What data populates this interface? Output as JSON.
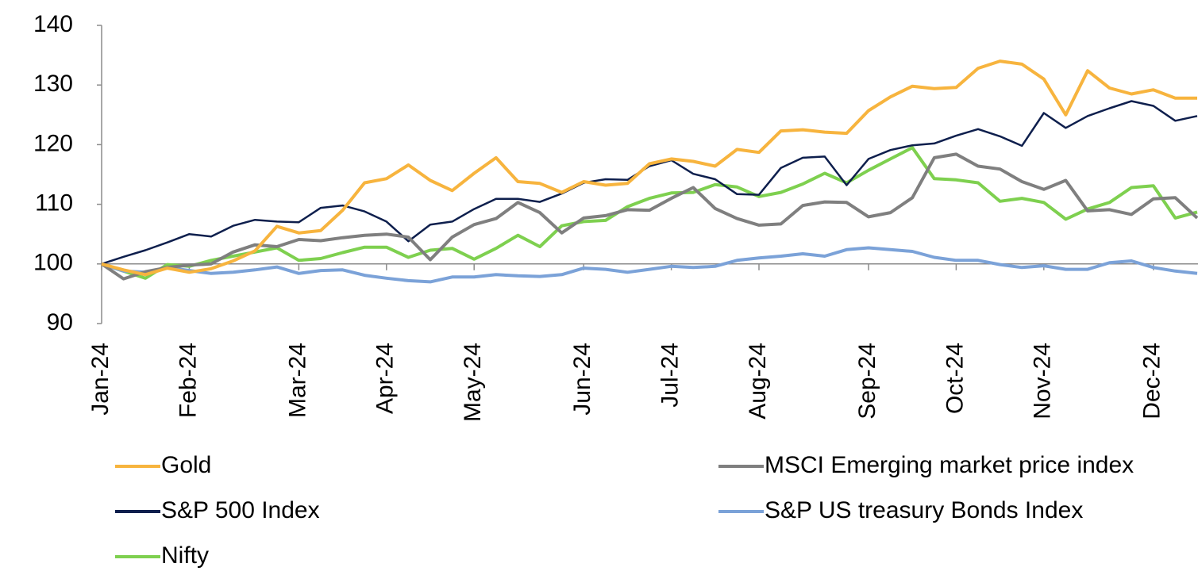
{
  "chart_data": {
    "type": "line",
    "categories": [
      "Jan-24",
      null,
      null,
      null,
      "Feb-24",
      null,
      null,
      null,
      null,
      "Mar-24",
      null,
      null,
      null,
      "Apr-24",
      null,
      null,
      null,
      "May-24",
      null,
      null,
      null,
      null,
      "Jun-24",
      null,
      null,
      null,
      "Jul-24",
      null,
      null,
      null,
      "Aug-24",
      null,
      null,
      null,
      null,
      "Sep-24",
      null,
      null,
      null,
      "Oct-24",
      null,
      null,
      null,
      "Nov-24",
      null,
      null,
      null,
      null,
      "Dec-24",
      null,
      null
    ],
    "series": [
      {
        "name": "Gold",
        "color": "#f7b43e",
        "values": [
          100,
          99,
          98.2,
          99.3,
          98.6,
          99.2,
          100.5,
          102.2,
          106.3,
          105.2,
          105.6,
          109,
          113.6,
          114.3,
          116.6,
          114,
          112.3,
          115.2,
          117.8,
          113.8,
          113.5,
          112,
          113.8,
          113.2,
          113.5,
          116.8,
          117.6,
          117.2,
          116.4,
          119.2,
          118.7,
          122.3,
          122.5,
          122.1,
          121.9,
          125.7,
          128,
          129.8,
          129.4,
          129.6,
          132.8,
          134,
          133.5,
          131,
          125,
          132.4,
          129.5,
          128.5,
          129.2,
          127.8,
          127.8
        ]
      },
      {
        "name": "MSCI Emerging market price index",
        "color": "#7f7f7f",
        "values": [
          100,
          97.5,
          98.7,
          99.4,
          99.8,
          100,
          102,
          103.2,
          102.9,
          104.1,
          103.9,
          104.4,
          104.8,
          105,
          104.5,
          100.7,
          104.5,
          106.6,
          107.6,
          110.3,
          108.6,
          105.2,
          107.7,
          108.1,
          109.1,
          109,
          111,
          112.8,
          109.3,
          107.6,
          106.5,
          106.7,
          109.8,
          110.4,
          110.3,
          107.9,
          108.6,
          111.1,
          117.8,
          118.4,
          116.4,
          115.9,
          113.8,
          112.5,
          114,
          108.9,
          109.1,
          108.3,
          110.9,
          111.1,
          107.7
        ]
      },
      {
        "name": "S&P 500 Index",
        "color": "#0e1f4d",
        "values": [
          100,
          101.2,
          102.3,
          103.6,
          105,
          104.6,
          106.4,
          107.4,
          107.1,
          107,
          109.4,
          109.8,
          108.8,
          107.1,
          103.8,
          106.6,
          107.1,
          109.2,
          110.9,
          110.9,
          110.4,
          111.8,
          113.6,
          114.2,
          114.1,
          116.4,
          117.4,
          115.1,
          114.2,
          111.7,
          111.6,
          116.1,
          117.8,
          118,
          113.2,
          117.6,
          119.1,
          119.9,
          120.2,
          121.5,
          122.6,
          121.4,
          119.8,
          125.3,
          122.8,
          124.8,
          126.1,
          127.3,
          126.5,
          124,
          124.8
        ]
      },
      {
        "name": "S&P US treasury Bonds Index",
        "color": "#7ba2d8",
        "values": [
          100,
          98.8,
          98.6,
          99.4,
          98.9,
          98.4,
          98.6,
          99,
          99.5,
          98.4,
          98.9,
          99,
          98.1,
          97.6,
          97.2,
          97,
          97.8,
          97.8,
          98.2,
          98,
          97.9,
          98.2,
          99.3,
          99.1,
          98.6,
          99.1,
          99.6,
          99.4,
          99.6,
          100.6,
          101,
          101.3,
          101.7,
          101.3,
          102.4,
          102.7,
          102.4,
          102.1,
          101.1,
          100.6,
          100.6,
          99.9,
          99.4,
          99.7,
          99.1,
          99.1,
          100.2,
          100.5,
          99.4,
          98.8,
          98.4
        ]
      },
      {
        "name": "Nifty",
        "color": "#7ed04f",
        "values": [
          100,
          98.8,
          97.6,
          99.9,
          99.6,
          100.6,
          101.3,
          102,
          102.7,
          100.6,
          100.9,
          101.9,
          102.8,
          102.8,
          101.1,
          102.3,
          102.6,
          100.8,
          102.6,
          104.8,
          102.9,
          106.4,
          107.1,
          107.3,
          109.6,
          111,
          111.9,
          112,
          113.3,
          112.9,
          111.3,
          112,
          113.4,
          115.2,
          113.6,
          115.7,
          117.6,
          119.5,
          114.3,
          114.1,
          113.6,
          110.5,
          111,
          110.3,
          107.5,
          109.2,
          110.3,
          112.8,
          113.1,
          107.7,
          108.7
        ]
      }
    ],
    "ylim": [
      90,
      140
    ],
    "yticks": [
      90,
      100,
      110,
      120,
      130,
      140
    ],
    "xaxis_crosses": 100,
    "grid": false
  }
}
